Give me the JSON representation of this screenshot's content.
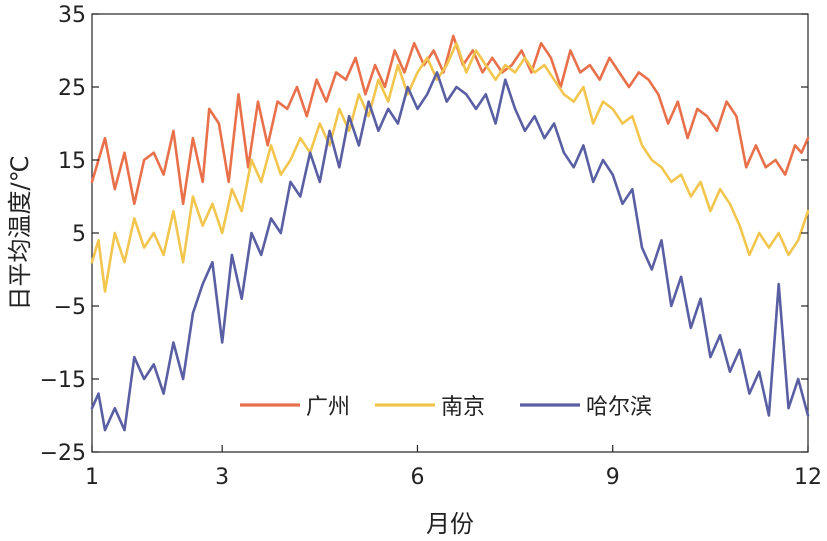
{
  "chart_data": {
    "type": "line",
    "xlabel": "月份",
    "ylabel": "日平均温度/℃",
    "xlim": [
      1,
      12
    ],
    "ylim": [
      -25,
      35
    ],
    "x_ticks": [
      1,
      3,
      6,
      9,
      12
    ],
    "x_tick_labels": [
      "1",
      "3",
      "6",
      "9",
      "12"
    ],
    "y_ticks": [
      35,
      25,
      15,
      5,
      -5,
      -15,
      -25
    ],
    "y_tick_labels": [
      "35",
      "25",
      "15",
      "5",
      "−5",
      "−15",
      "−25"
    ],
    "legend_position": "bottom-center",
    "grid": false,
    "series": [
      {
        "name": "广州",
        "color": "#e8704a",
        "x": [
          1.0,
          1.1,
          1.2,
          1.35,
          1.5,
          1.65,
          1.8,
          1.95,
          2.1,
          2.25,
          2.4,
          2.55,
          2.7,
          2.8,
          2.95,
          3.1,
          3.25,
          3.4,
          3.55,
          3.7,
          3.85,
          4.0,
          4.15,
          4.3,
          4.45,
          4.6,
          4.75,
          4.9,
          5.05,
          5.2,
          5.35,
          5.5,
          5.65,
          5.8,
          5.95,
          6.1,
          6.25,
          6.4,
          6.55,
          6.7,
          6.85,
          7.0,
          7.15,
          7.3,
          7.45,
          7.6,
          7.75,
          7.9,
          8.05,
          8.2,
          8.35,
          8.5,
          8.65,
          8.8,
          8.95,
          9.1,
          9.25,
          9.4,
          9.55,
          9.7,
          9.85,
          10.0,
          10.15,
          10.3,
          10.45,
          10.6,
          10.75,
          10.9,
          11.05,
          11.2,
          11.35,
          11.5,
          11.65,
          11.8,
          11.9,
          12.0
        ],
        "values": [
          12,
          15,
          18,
          11,
          16,
          9,
          15,
          16,
          13,
          19,
          9,
          18,
          12,
          22,
          20,
          12,
          24,
          14,
          23,
          17,
          23,
          22,
          25,
          21,
          26,
          23,
          27,
          26,
          29,
          24,
          28,
          25,
          30,
          27,
          31,
          28,
          30,
          27,
          32,
          28,
          30,
          27,
          29,
          27,
          28,
          30,
          27,
          31,
          29,
          25,
          30,
          27,
          28,
          26,
          29,
          27,
          25,
          27,
          26,
          24,
          20,
          23,
          18,
          22,
          21,
          19,
          23,
          21,
          14,
          17,
          14,
          15,
          13,
          17,
          16,
          18
        ]
      },
      {
        "name": "南京",
        "color": "#f2c64e",
        "x": [
          1.0,
          1.1,
          1.2,
          1.35,
          1.5,
          1.65,
          1.8,
          1.95,
          2.1,
          2.25,
          2.4,
          2.55,
          2.7,
          2.85,
          3.0,
          3.15,
          3.3,
          3.45,
          3.6,
          3.75,
          3.9,
          4.05,
          4.2,
          4.35,
          4.5,
          4.65,
          4.8,
          4.95,
          5.1,
          5.25,
          5.4,
          5.55,
          5.7,
          5.85,
          6.0,
          6.15,
          6.3,
          6.45,
          6.6,
          6.75,
          6.9,
          7.05,
          7.2,
          7.35,
          7.5,
          7.65,
          7.8,
          7.95,
          8.1,
          8.25,
          8.4,
          8.55,
          8.7,
          8.85,
          9.0,
          9.15,
          9.3,
          9.45,
          9.6,
          9.75,
          9.9,
          10.05,
          10.2,
          10.35,
          10.5,
          10.65,
          10.8,
          10.95,
          11.1,
          11.25,
          11.4,
          11.55,
          11.7,
          11.85,
          12.0
        ],
        "values": [
          1,
          4,
          -3,
          5,
          1,
          7,
          3,
          5,
          2,
          8,
          1,
          10,
          6,
          9,
          5,
          11,
          8,
          15,
          12,
          17,
          13,
          15,
          18,
          16,
          20,
          17,
          22,
          19,
          24,
          21,
          26,
          23,
          28,
          24,
          27,
          29,
          26,
          28,
          31,
          27,
          30,
          28,
          26,
          28,
          27,
          29,
          27,
          28,
          26,
          24,
          23,
          25,
          20,
          23,
          22,
          20,
          21,
          17,
          15,
          14,
          12,
          13,
          10,
          12,
          8,
          11,
          9,
          6,
          2,
          5,
          3,
          5,
          2,
          4,
          8
        ]
      },
      {
        "name": "哈尔滨",
        "color": "#5a5fa3",
        "x": [
          1.0,
          1.1,
          1.2,
          1.35,
          1.5,
          1.65,
          1.8,
          1.95,
          2.1,
          2.25,
          2.4,
          2.55,
          2.7,
          2.85,
          3.0,
          3.15,
          3.3,
          3.45,
          3.6,
          3.75,
          3.9,
          4.05,
          4.2,
          4.35,
          4.5,
          4.65,
          4.8,
          4.95,
          5.1,
          5.25,
          5.4,
          5.55,
          5.7,
          5.85,
          6.0,
          6.15,
          6.3,
          6.45,
          6.6,
          6.75,
          6.9,
          7.05,
          7.2,
          7.35,
          7.5,
          7.65,
          7.8,
          7.95,
          8.1,
          8.25,
          8.4,
          8.55,
          8.7,
          8.85,
          9.0,
          9.15,
          9.3,
          9.45,
          9.6,
          9.75,
          9.9,
          10.05,
          10.2,
          10.35,
          10.5,
          10.65,
          10.8,
          10.95,
          11.1,
          11.25,
          11.4,
          11.55,
          11.7,
          11.85,
          12.0
        ],
        "values": [
          -19,
          -17,
          -22,
          -19,
          -22,
          -12,
          -15,
          -13,
          -17,
          -10,
          -15,
          -6,
          -2,
          1,
          -10,
          2,
          -4,
          5,
          2,
          7,
          5,
          12,
          10,
          16,
          12,
          19,
          14,
          21,
          17,
          23,
          19,
          22,
          20,
          25,
          22,
          24,
          27,
          23,
          25,
          24,
          22,
          24,
          20,
          26,
          22,
          19,
          21,
          18,
          20,
          16,
          14,
          17,
          12,
          15,
          13,
          9,
          11,
          3,
          0,
          4,
          -5,
          -1,
          -8,
          -4,
          -12,
          -9,
          -14,
          -11,
          -17,
          -14,
          -20,
          -2,
          -19,
          -15,
          -20
        ]
      }
    ]
  }
}
